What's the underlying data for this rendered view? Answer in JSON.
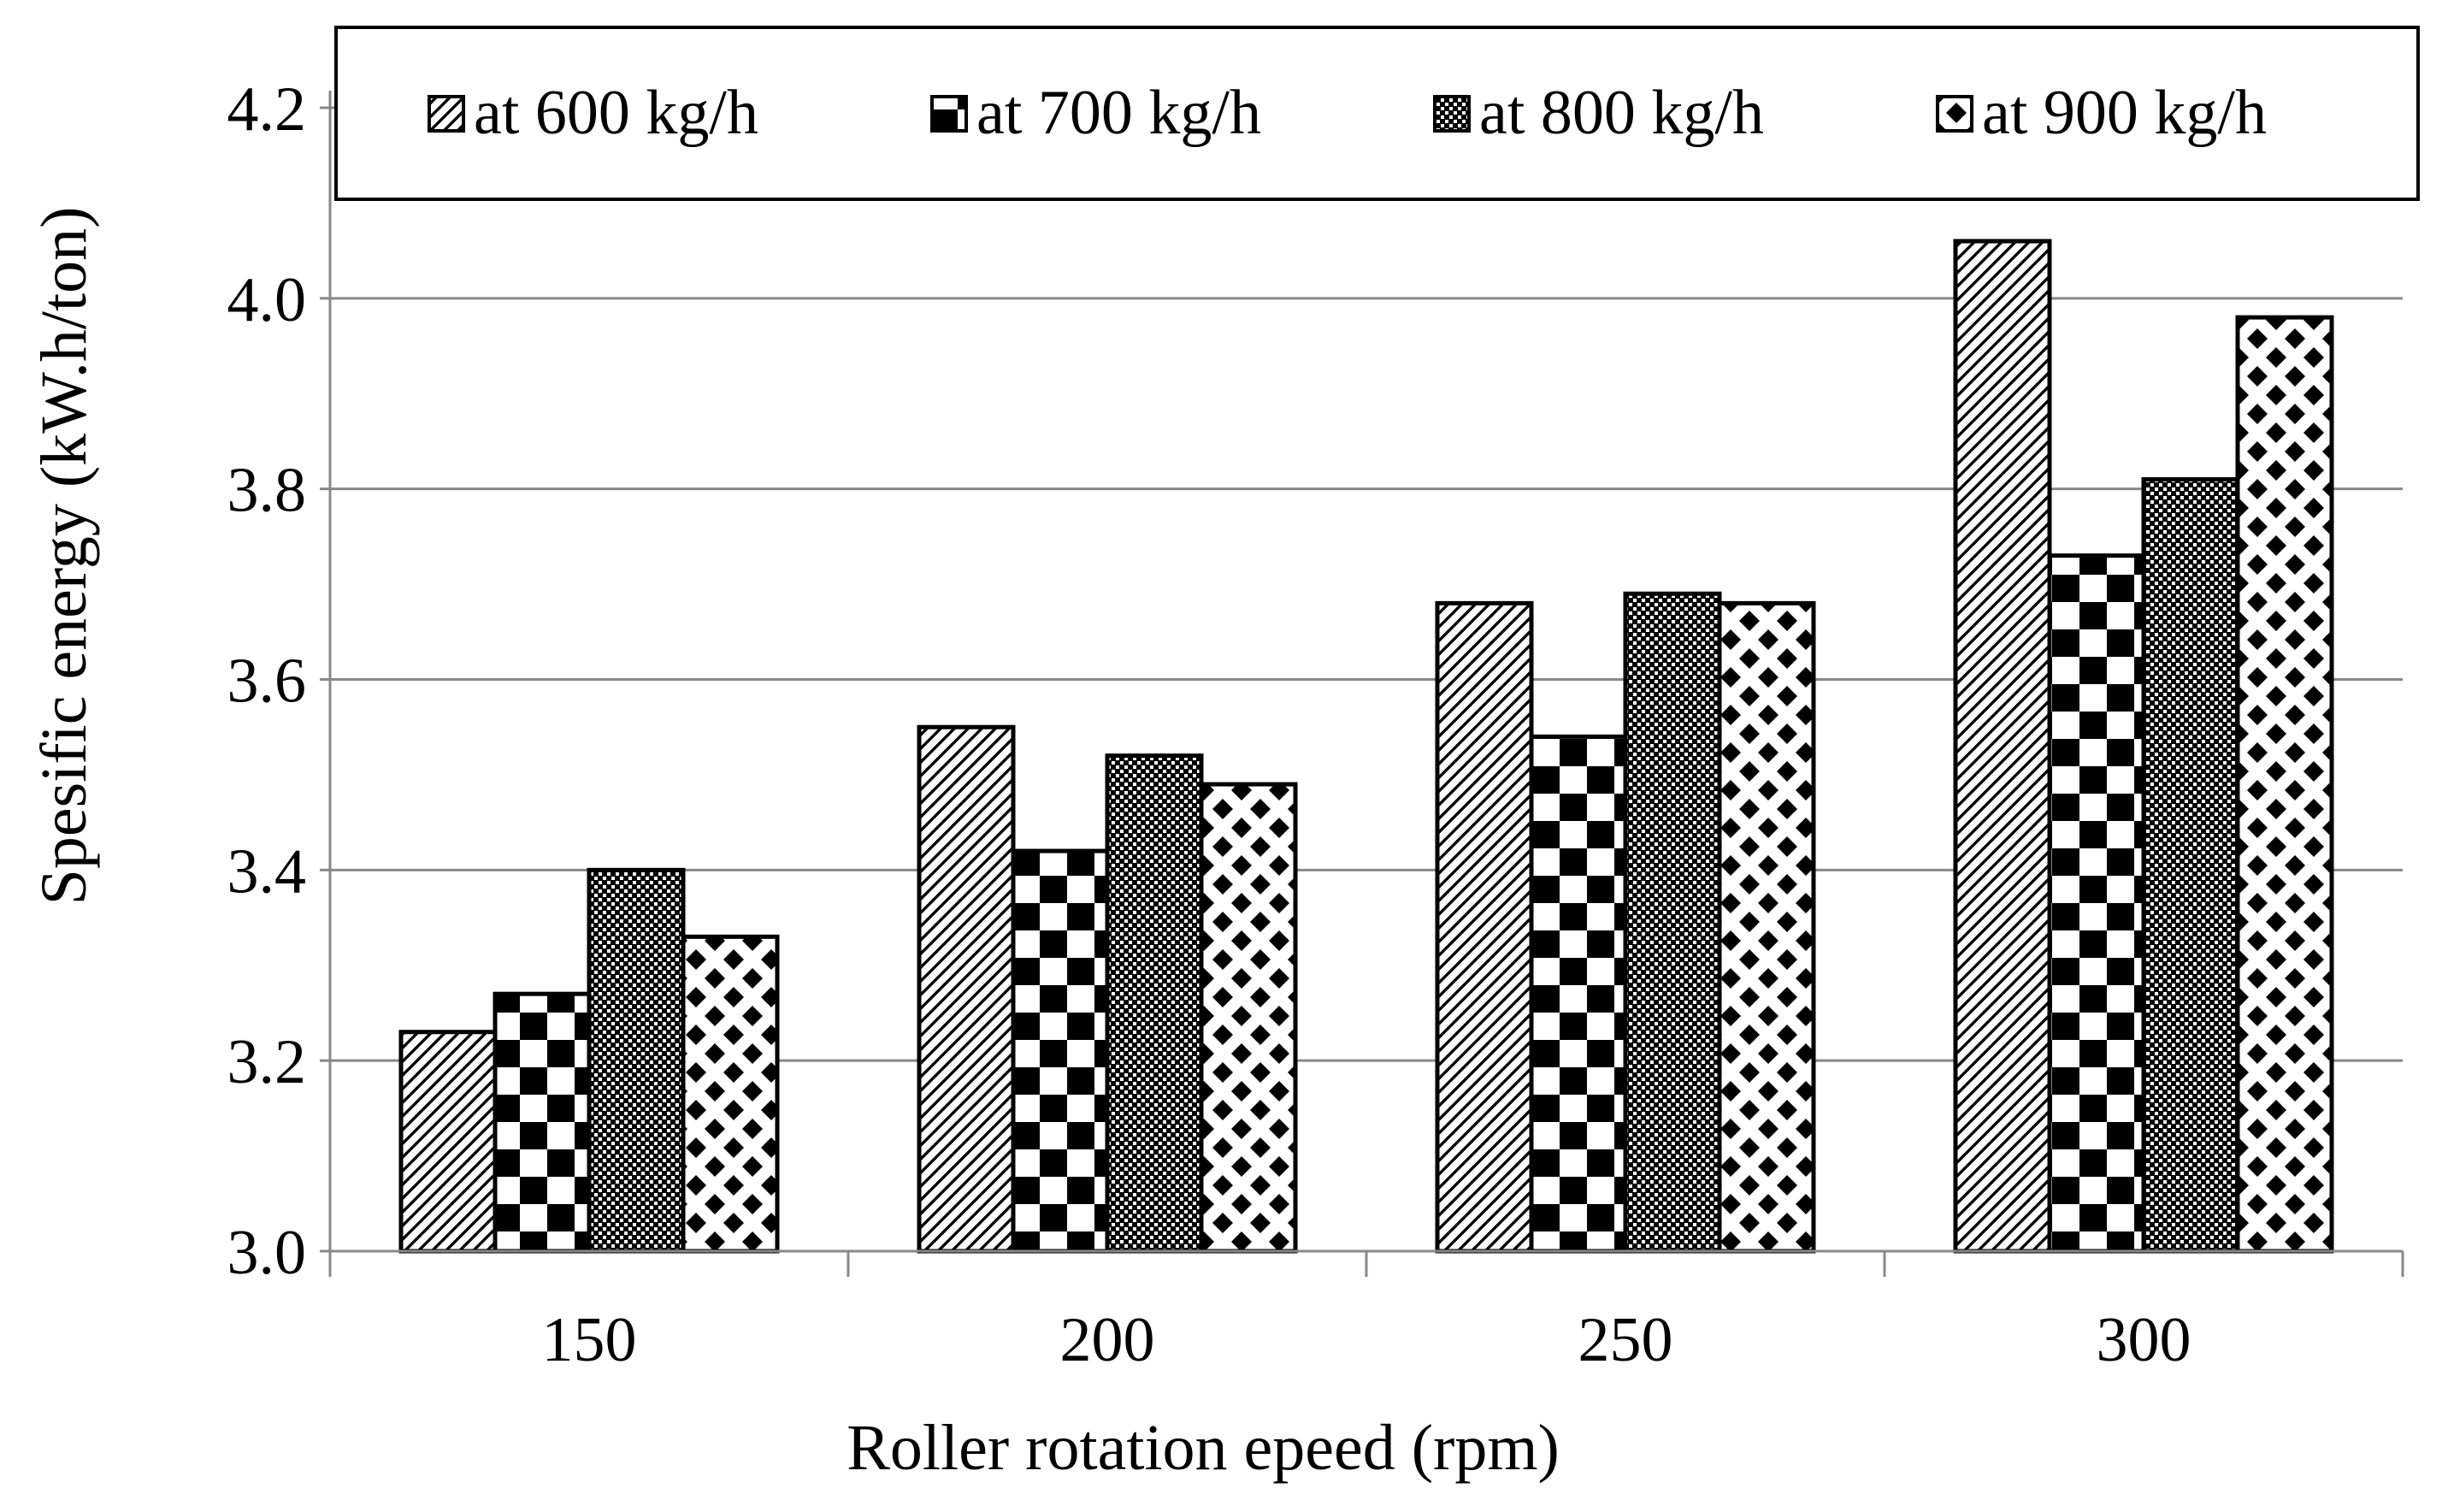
{
  "chart_data": {
    "type": "bar",
    "title": "",
    "xlabel": "Roller rotation epeed (rpm)",
    "ylabel": "Spesific energy (kW.h/ton)",
    "categories": [
      "150",
      "200",
      "250",
      "300"
    ],
    "ylim": [
      3.0,
      4.2
    ],
    "yticks": [
      "3.0",
      "3.2",
      "3.4",
      "3.6",
      "3.8",
      "4.0",
      "4.2"
    ],
    "grid": true,
    "legend_position": "top",
    "series": [
      {
        "name": "at 600 kg/h",
        "pattern": "diagonal-hatch",
        "values": [
          3.23,
          3.55,
          3.68,
          4.06
        ]
      },
      {
        "name": "at 700 kg/h",
        "pattern": "checkerboard",
        "values": [
          3.27,
          3.42,
          3.54,
          3.73
        ]
      },
      {
        "name": "at 800 kg/h",
        "pattern": "fine-dots",
        "values": [
          3.4,
          3.52,
          3.69,
          3.81
        ]
      },
      {
        "name": "at 900 kg/h",
        "pattern": "diamonds",
        "values": [
          3.33,
          3.49,
          3.68,
          3.98
        ]
      }
    ],
    "colors": {
      "bar_stroke": "#000000",
      "grid": "#888888",
      "axis": "#888888",
      "background": "#ffffff"
    }
  }
}
